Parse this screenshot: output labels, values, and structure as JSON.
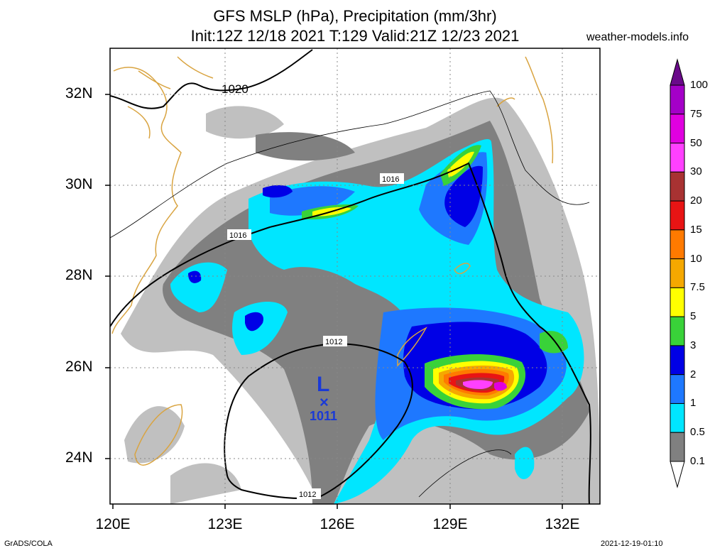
{
  "title_line1": "GFS MSLP (hPa), Precipitation (mm/3hr)",
  "title_line2": "Init:12Z 12/18 2021 T:129 Valid:21Z 12/23 2021",
  "site": "weather-models.info",
  "credit": "GrADS/COLA",
  "timestamp": "2021-12-19-01:10",
  "lat_labels": [
    "32N",
    "30N",
    "28N",
    "26N",
    "24N"
  ],
  "lon_labels": [
    "120E",
    "123E",
    "126E",
    "129E",
    "132E"
  ],
  "isobar_labels": [
    "1020",
    "1016",
    "1016",
    "1012",
    "1012"
  ],
  "low_center": {
    "symbol": "L",
    "marker": "×",
    "pressure": "1011"
  },
  "legend": {
    "levels": [
      "100",
      "75",
      "50",
      "30",
      "20",
      "15",
      "10",
      "7.5",
      "5",
      "3",
      "2",
      "1",
      "0.5",
      "0.1"
    ],
    "colors": [
      "#6a0a8a",
      "#a400c8",
      "#e000e0",
      "#ff40ff",
      "#a83232",
      "#e81414",
      "#ff7a00",
      "#f5a800",
      "#ffff00",
      "#39d239",
      "#0000e6",
      "#1e78ff",
      "#00e6ff",
      "#808080",
      "#c0c0c0"
    ]
  },
  "map_extent": {
    "lon_min": 120,
    "lon_max": 133,
    "lat_min": 23,
    "lat_max": 33
  }
}
